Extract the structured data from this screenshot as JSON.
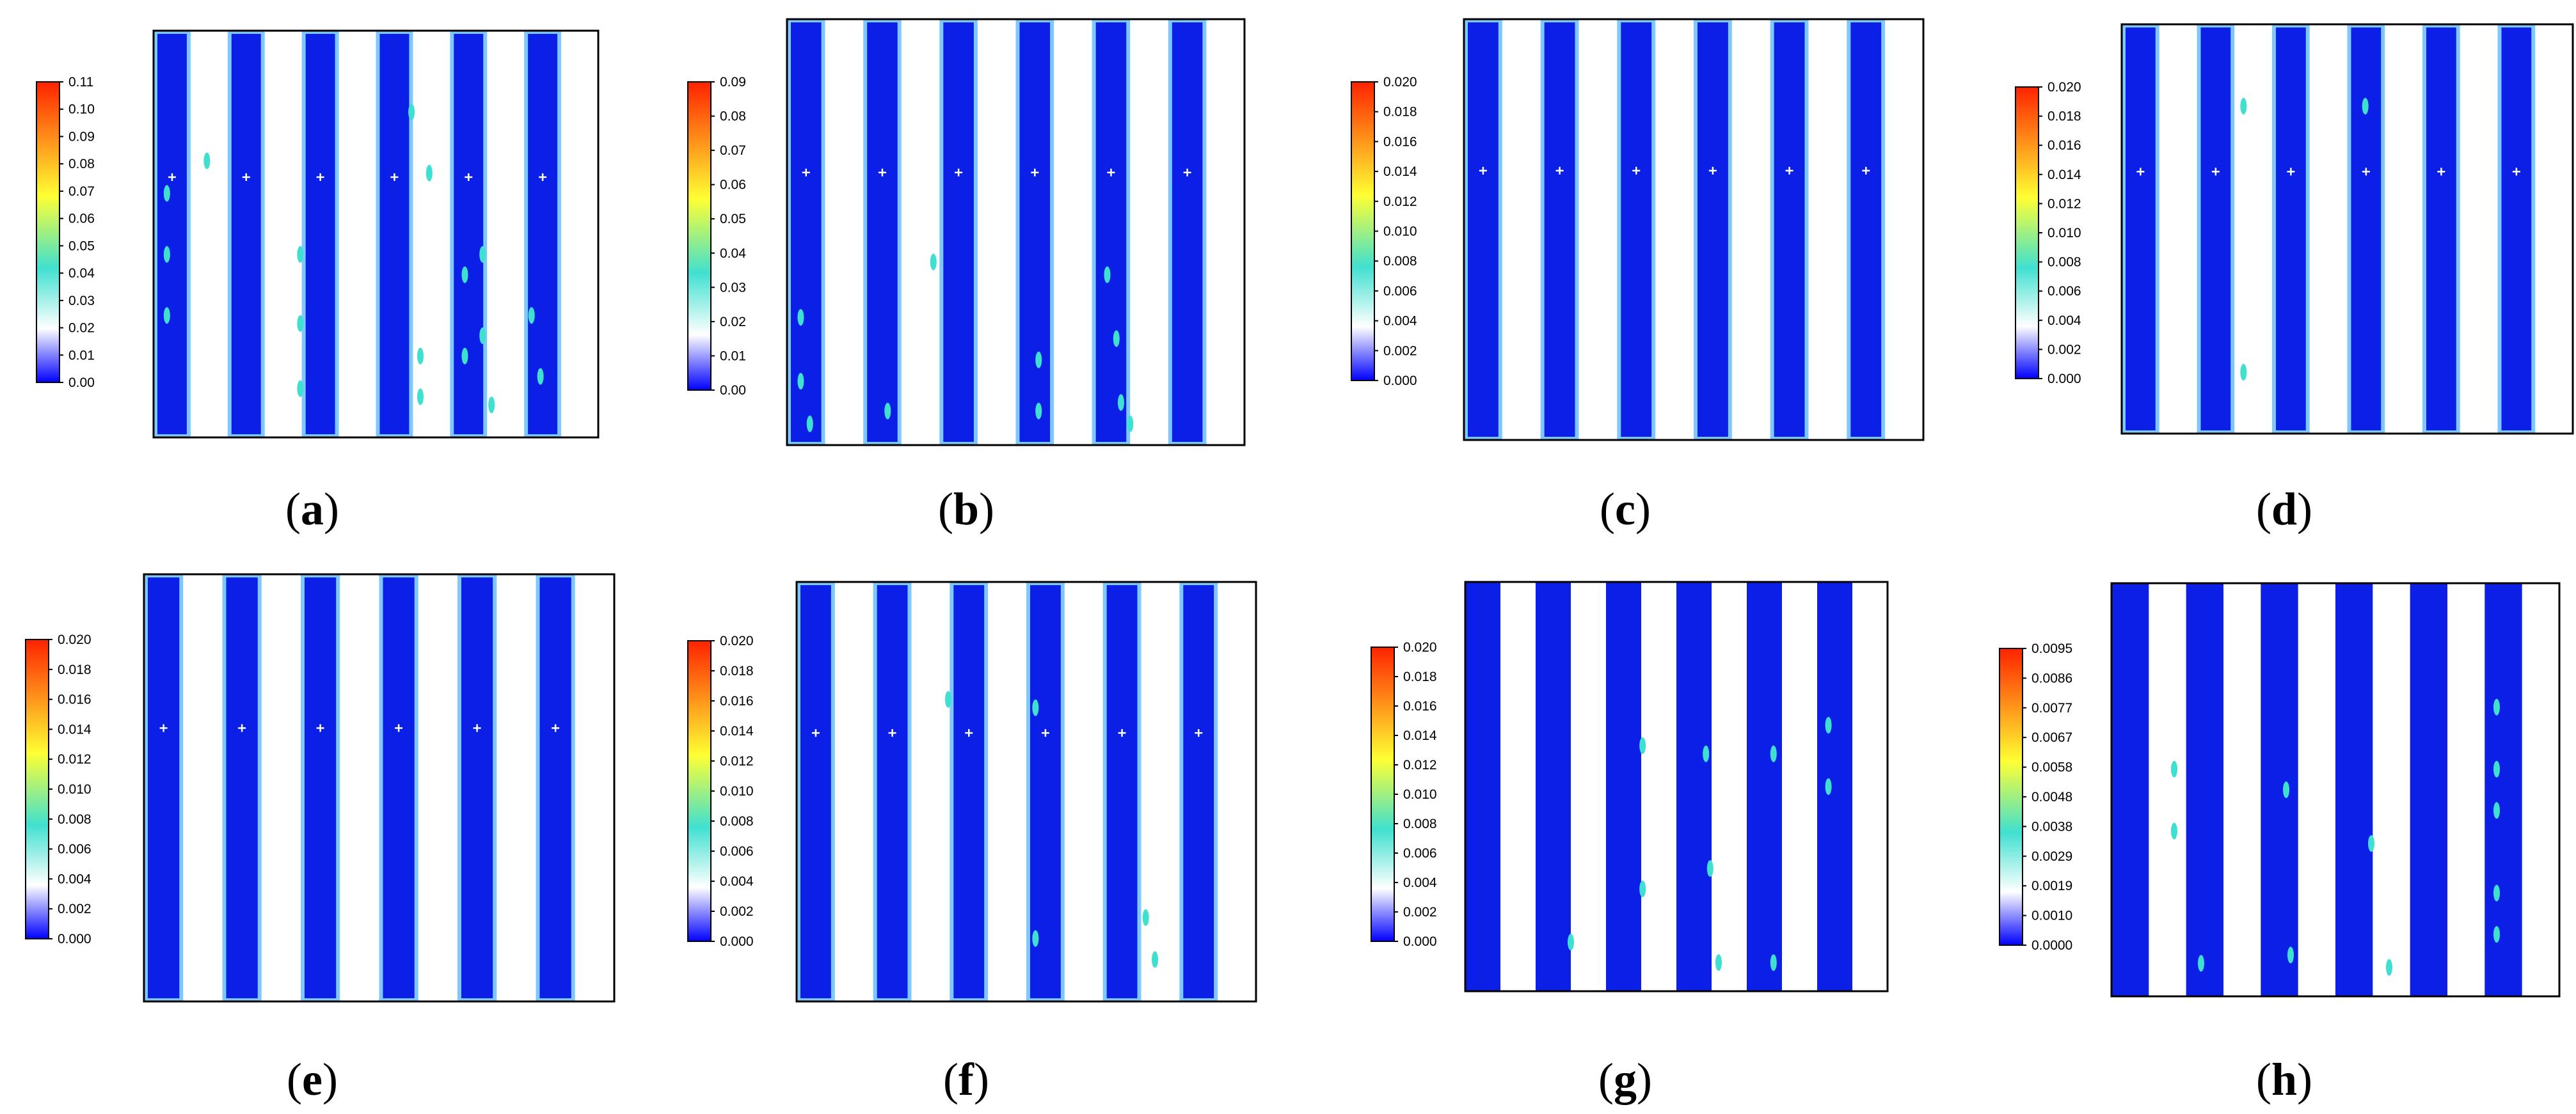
{
  "colors": {
    "channel": "#0b1fe6",
    "channel_edge": "#7ec8ff",
    "gap": "#ffffff",
    "frame": "#000000",
    "marker": "#ffffff",
    "spot": "#40e0d0"
  },
  "colorbar_gradient": [
    "#0000ff",
    "#ffffff",
    "#40e0d0",
    "#ffff33",
    "#ff2200"
  ],
  "panels": [
    {
      "letter": "a",
      "ticks": [
        "0.11",
        "0.10",
        "0.09",
        "0.08",
        "0.07",
        "0.06",
        "0.05",
        "0.04",
        "0.03",
        "0.02",
        "0.01",
        "0.00"
      ],
      "style": "outlined",
      "markers": true
    },
    {
      "letter": "b",
      "ticks": [
        "0.09",
        "0.08",
        "0.07",
        "0.06",
        "0.05",
        "0.04",
        "0.03",
        "0.02",
        "0.01",
        "0.00"
      ],
      "style": "outlined",
      "markers": true
    },
    {
      "letter": "c",
      "ticks": [
        "0.020",
        "0.018",
        "0.016",
        "0.014",
        "0.012",
        "0.010",
        "0.008",
        "0.006",
        "0.004",
        "0.002",
        "0.000"
      ],
      "style": "outlined",
      "markers": true
    },
    {
      "letter": "d",
      "ticks": [
        "0.020",
        "0.018",
        "0.016",
        "0.014",
        "0.012",
        "0.010",
        "0.008",
        "0.006",
        "0.004",
        "0.002",
        "0.000"
      ],
      "style": "outlined",
      "markers": true
    },
    {
      "letter": "e",
      "ticks": [
        "0.020",
        "0.018",
        "0.016",
        "0.014",
        "0.012",
        "0.010",
        "0.008",
        "0.006",
        "0.004",
        "0.002",
        "0.000"
      ],
      "style": "outlined",
      "markers": true
    },
    {
      "letter": "f",
      "ticks": [
        "0.020",
        "0.018",
        "0.016",
        "0.014",
        "0.012",
        "0.010",
        "0.008",
        "0.006",
        "0.004",
        "0.002",
        "0.000"
      ],
      "style": "outlined",
      "markers": true
    },
    {
      "letter": "g",
      "ticks": [
        "0.020",
        "0.018",
        "0.016",
        "0.014",
        "0.012",
        "0.010",
        "0.008",
        "0.006",
        "0.004",
        "0.002",
        "0.000"
      ],
      "style": "solid",
      "markers": false
    },
    {
      "letter": "h",
      "ticks": [
        "0.0095",
        "0.0086",
        "0.0077",
        "0.0067",
        "0.0058",
        "0.0048",
        "0.0038",
        "0.0029",
        "0.0019",
        "0.0010",
        "0.0000"
      ],
      "style": "solid",
      "markers": false
    }
  ],
  "paren_open": "(",
  "paren_close": ")"
}
